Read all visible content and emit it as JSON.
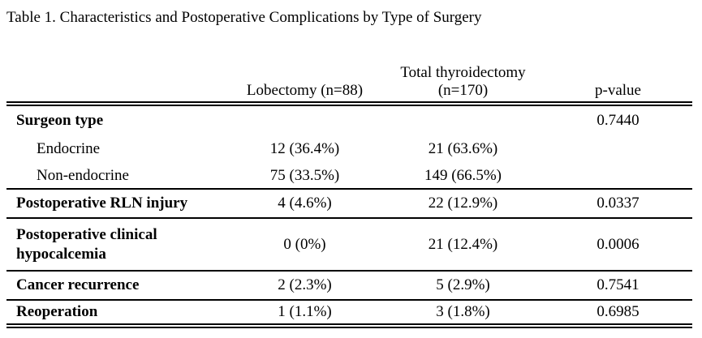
{
  "title": "Table 1. Characteristics and Postoperative Complications by Type of Surgery",
  "table": {
    "columns": {
      "label": "",
      "lobectomy": "Lobectomy (n=88)",
      "total": "Total thyroidectomy\n(n=170)",
      "p": "p-value"
    },
    "rows": [
      {
        "label": "Surgeon type",
        "bold": true,
        "indent": false,
        "lobectomy": "",
        "total": "",
        "p": "0.7440",
        "divider": "none"
      },
      {
        "label": "Endocrine",
        "bold": false,
        "indent": true,
        "lobectomy": "12 (36.4%)",
        "total": "21 (63.6%)",
        "p": "",
        "divider": "none"
      },
      {
        "label": "Non-endocrine",
        "bold": false,
        "indent": true,
        "lobectomy": "75 (33.5%)",
        "total": "149 (66.5%)",
        "p": "",
        "divider": "single"
      },
      {
        "label": "Postoperative RLN injury",
        "bold": true,
        "indent": false,
        "lobectomy": "4 (4.6%)",
        "total": "22 (12.9%)",
        "p": "0.0337",
        "divider": "single"
      },
      {
        "label": "Postoperative clinical hypocalcemia",
        "bold": true,
        "indent": false,
        "lobectomy": "0 (0%)",
        "total": "21 (12.4%)",
        "p": "0.0006",
        "divider": "single"
      },
      {
        "label": "Cancer recurrence",
        "bold": true,
        "indent": false,
        "lobectomy": "2 (2.3%)",
        "total": "5 (2.9%)",
        "p": "0.7541",
        "divider": "single"
      },
      {
        "label": "Reoperation",
        "bold": true,
        "indent": false,
        "lobectomy": "1 (1.1%)",
        "total": "3 (1.8%)",
        "p": "0.6985",
        "divider": "double"
      }
    ]
  }
}
